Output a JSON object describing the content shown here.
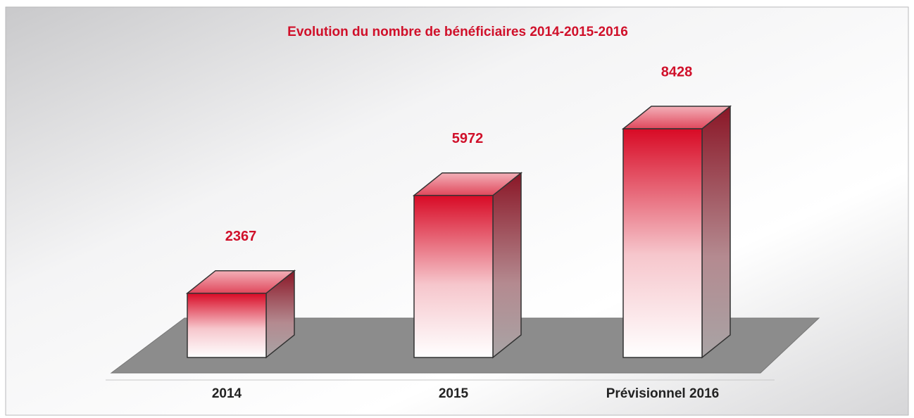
{
  "chart_data": {
    "type": "bar3d",
    "title": "Evolution du nombre de bénéficiaires 2014-2015-2016",
    "categories": [
      "2014",
      "2015",
      "Prévisionnel 2016"
    ],
    "values": [
      2367,
      5972,
      8428
    ],
    "color": "#d0102a"
  }
}
